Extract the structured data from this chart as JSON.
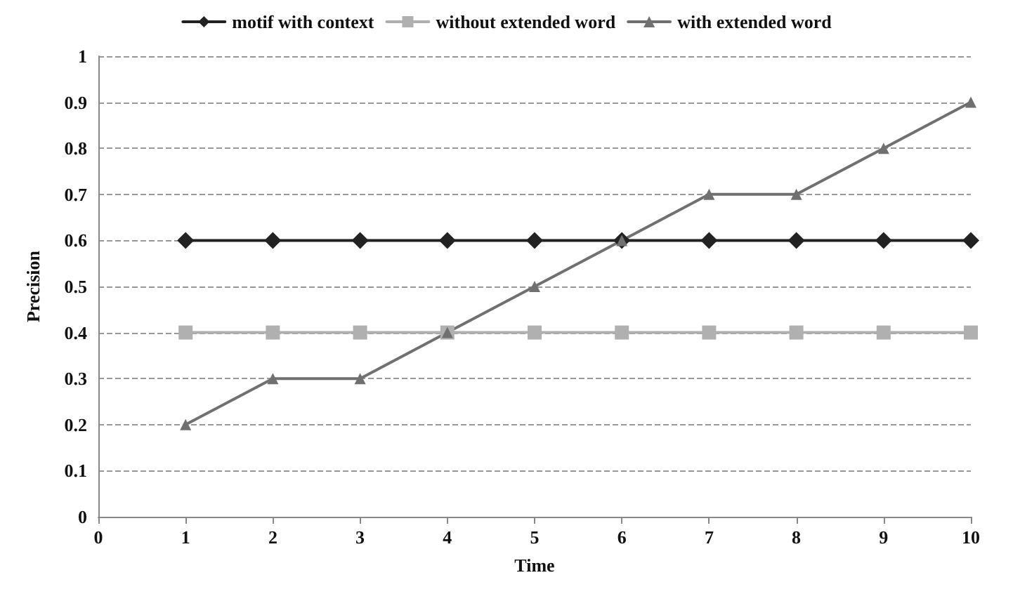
{
  "chart_data": {
    "type": "line",
    "xlabel": "Time",
    "ylabel": "Precision",
    "x": [
      1,
      2,
      3,
      4,
      5,
      6,
      7,
      8,
      9,
      10
    ],
    "series": [
      {
        "name": "motif with context",
        "color": "#222222",
        "marker": "diamond",
        "values": [
          0.6,
          0.6,
          0.6,
          0.6,
          0.6,
          0.6,
          0.6,
          0.6,
          0.6,
          0.6
        ]
      },
      {
        "name": "without extended word",
        "color": "#b0b0b0",
        "marker": "square",
        "values": [
          0.4,
          0.4,
          0.4,
          0.4,
          0.4,
          0.4,
          0.4,
          0.4,
          0.4,
          0.4
        ]
      },
      {
        "name": "with extended word",
        "color": "#707070",
        "marker": "triangle",
        "values": [
          0.2,
          0.3,
          0.3,
          0.4,
          0.5,
          0.6,
          0.7,
          0.7,
          0.8,
          0.9
        ]
      }
    ],
    "xlim": [
      0,
      10
    ],
    "xticks": [
      0,
      1,
      2,
      3,
      4,
      5,
      6,
      7,
      8,
      9,
      10
    ],
    "ylim": [
      0,
      1
    ],
    "yticks": [
      0,
      0.1,
      0.2,
      0.3,
      0.4,
      0.5,
      0.6,
      0.7,
      0.8,
      0.9,
      1
    ],
    "grid": "y",
    "legend": "top"
  }
}
